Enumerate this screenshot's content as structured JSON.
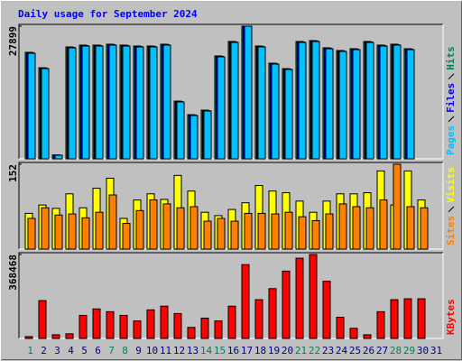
{
  "chart_data": [
    {
      "type": "bar",
      "title": "Daily usage for September 2024",
      "ylim": [
        0,
        27899
      ],
      "yticks": [
        27899
      ],
      "series": [
        {
          "name": "Pages",
          "color": "#00c0ff",
          "values": [
            22206,
            18979,
            759,
            23345,
            23724,
            23724,
            23914,
            23724,
            23534,
            23534,
            23914,
            11957,
            9110,
            10059,
            21446,
            24483,
            27899,
            23534,
            19928,
            18789,
            24483,
            24673,
            23155,
            22585,
            22965,
            24483,
            23724,
            23914,
            22965,
            null
          ]
        },
        {
          "name": "Files",
          "color": "#0000ff",
          "values": [
            22300,
            19070,
            790,
            23440,
            23820,
            23820,
            24010,
            23820,
            23630,
            23630,
            24010,
            12050,
            9200,
            10150,
            21540,
            24580,
            27899,
            23630,
            20020,
            18880,
            24580,
            24770,
            23250,
            22680,
            23060,
            24580,
            23820,
            24010,
            23060,
            null
          ]
        },
        {
          "name": "Hits",
          "color": "#00805c",
          "values": [
            22400,
            19160,
            820,
            23540,
            23920,
            23920,
            24110,
            23920,
            23730,
            23730,
            24110,
            12140,
            9290,
            10240,
            21640,
            24680,
            27899,
            23730,
            20120,
            18970,
            24680,
            24870,
            23350,
            22780,
            23160,
            24680,
            23920,
            24110,
            23160,
            null
          ]
        }
      ]
    },
    {
      "type": "bar",
      "ylim": [
        0,
        152
      ],
      "yticks": [
        152
      ],
      "series": [
        {
          "name": "Sites",
          "color": "#ff8000",
          "values": [
            55,
            74,
            61,
            63,
            56,
            66,
            97,
            46,
            69,
            88,
            81,
            74,
            76,
            50,
            55,
            50,
            64,
            64,
            63,
            66,
            58,
            51,
            63,
            81,
            76,
            74,
            88,
            152,
            76,
            74,
            null
          ]
        },
        {
          "name": "Visits",
          "color": "#ffff00",
          "values": [
            64,
            79,
            73,
            99,
            74,
            109,
            127,
            55,
            88,
            99,
            89,
            132,
            104,
            66,
            60,
            71,
            83,
            114,
            104,
            101,
            86,
            66,
            86,
            99,
            99,
            101,
            140,
            79,
            140,
            88,
            null
          ]
        }
      ]
    },
    {
      "type": "bar",
      "ylim": [
        0,
        368468
      ],
      "yticks": [
        368468
      ],
      "categories": [
        "1",
        "2",
        "3",
        "4",
        "5",
        "6",
        "7",
        "8",
        "9",
        "10",
        "11",
        "12",
        "13",
        "14",
        "15",
        "16",
        "17",
        "18",
        "19",
        "20",
        "21",
        "22",
        "23",
        "24",
        "25",
        "26",
        "27",
        "28",
        "29",
        "30",
        "31"
      ],
      "category_colors": [
        "#00805c",
        "#000080",
        "#000080",
        "#000080",
        "#000080",
        "#000080",
        "#00805c",
        "#00805c",
        "#000080",
        "#000080",
        "#000080",
        "#000080",
        "#000080",
        "#00805c",
        "#00805c",
        "#000080",
        "#000080",
        "#000080",
        "#000080",
        "#000080",
        "#00805c",
        "#00805c",
        "#000080",
        "#000080",
        "#000080",
        "#000080",
        "#000080",
        "#00805c",
        "#00805c",
        "#000080",
        "#000080"
      ],
      "series": [
        {
          "name": "KBytes",
          "color": "#ff0000",
          "values": [
            8098,
            166013,
            16196,
            20245,
            101227,
            129570,
            117423,
            101227,
            76933,
            125521,
            141718,
            109325,
            48589,
            89080,
            76933,
            141718,
            323928,
            170062,
            218651,
            295584,
            352271,
            368468,
            251044,
            93129,
            44540,
            16196,
            117423,
            170062,
            174111,
            174111,
            null
          ]
        }
      ]
    }
  ]
}
